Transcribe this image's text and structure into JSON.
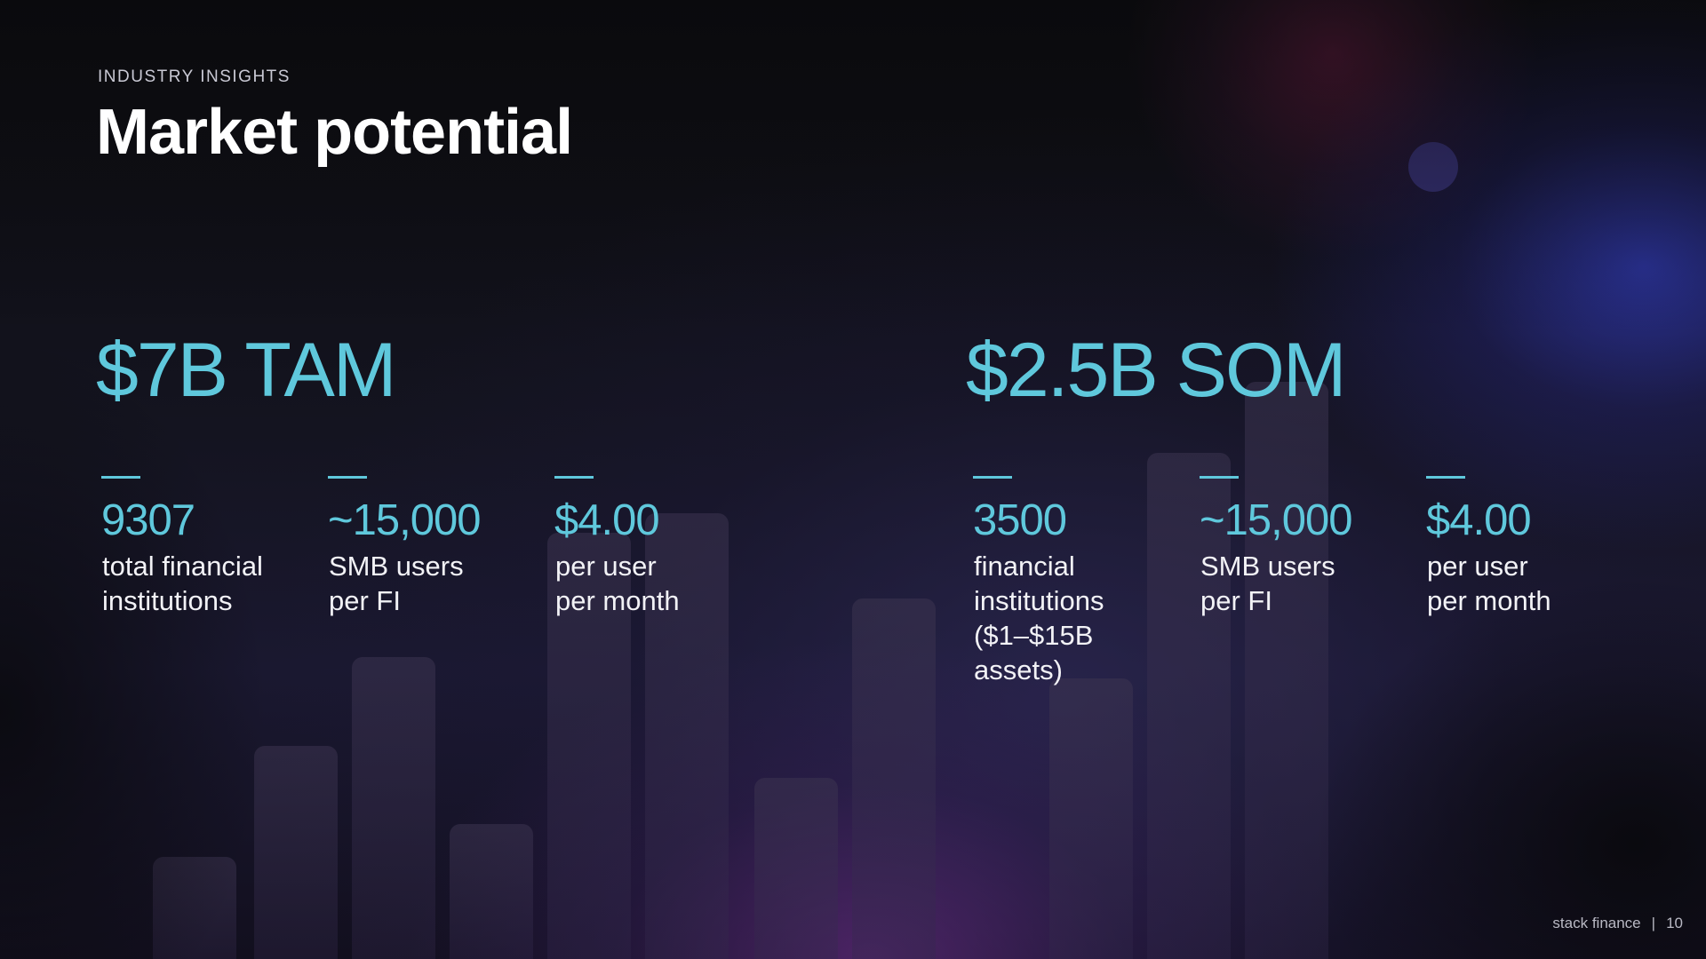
{
  "slide": {
    "eyebrow": "INDUSTRY INSIGHTS",
    "title": "Market potential"
  },
  "tam": {
    "headline": "$7B TAM",
    "stats": [
      {
        "value": "9307",
        "label": "total financial\ninstitutions"
      },
      {
        "value": "~15,000",
        "label": "SMB users\nper FI"
      },
      {
        "value": "$4.00",
        "label": "per user\nper month"
      }
    ]
  },
  "som": {
    "headline": "$2.5B SOM",
    "stats": [
      {
        "value": "3500",
        "label": "financial\ninstitutions\n($1–$15B\nassets)"
      },
      {
        "value": "~15,000",
        "label": "SMB users\nper FI"
      },
      {
        "value": "$4.00",
        "label": "per user\nper month"
      }
    ]
  },
  "footer": {
    "brand": "stack finance",
    "separator": "|",
    "page_number": "10"
  },
  "colors": {
    "accent": "#5fc8dc",
    "title": "#ffffff",
    "body_text": "#f2f2f6"
  }
}
